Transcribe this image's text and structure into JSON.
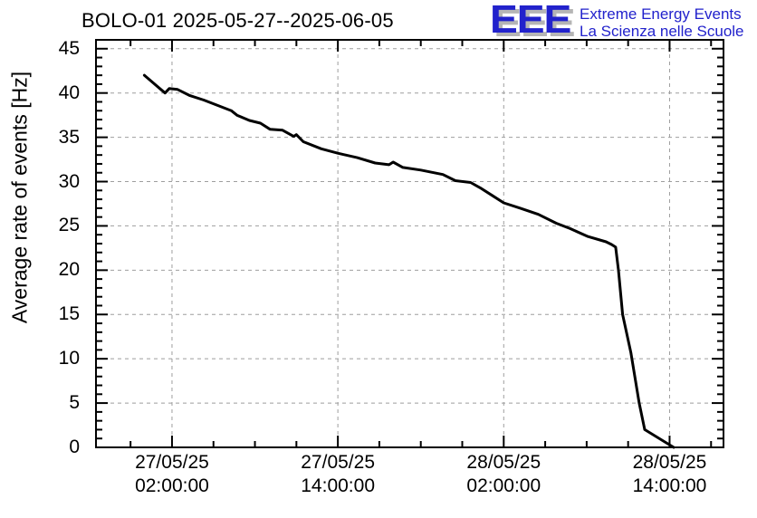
{
  "header": {
    "title": "BOLO-01 2025-05-27--2025-06-05"
  },
  "logo": {
    "acronym": "EEE",
    "line1": "Extreme Energy Events",
    "line2": "La Scienza nelle Scuole",
    "text_color": "#2222cc",
    "shadow_color": "#b5b5b5"
  },
  "chart_data": {
    "type": "line",
    "title": "BOLO-01 2025-05-27--2025-06-05",
    "xlabel": "",
    "ylabel": "Average rate of events [Hz]",
    "x_unit": "hours since 2025-05-27 00:00:00",
    "xlim": [
      -3.5,
      41.9
    ],
    "ylim": [
      0,
      46
    ],
    "grid": "dashed gray gridlines at major ticks, both axes",
    "legend_position": "none",
    "grid_color": "#9e9e9e",
    "frame_color": "#000000",
    "y_major_ticks": [
      0,
      5,
      10,
      15,
      20,
      25,
      30,
      35,
      40,
      45
    ],
    "y_minor_step": 1,
    "x_minor_step_hours": 3,
    "x_major_ticks": [
      {
        "hour": 2,
        "line1": "27/05/25",
        "line2": "02:00:00"
      },
      {
        "hour": 14,
        "line1": "27/05/25",
        "line2": "14:00:00"
      },
      {
        "hour": 26,
        "line1": "28/05/25",
        "line2": "02:00:00"
      },
      {
        "hour": 38,
        "line1": "28/05/25",
        "line2": "14:00:00"
      }
    ],
    "series": [
      {
        "name": "average-rate",
        "color": "#000000",
        "points": [
          [
            0.0,
            42.0
          ],
          [
            0.6,
            41.2
          ],
          [
            1.2,
            40.4
          ],
          [
            1.5,
            40.0
          ],
          [
            1.8,
            40.5
          ],
          [
            2.4,
            40.4
          ],
          [
            3.3,
            39.7
          ],
          [
            4.3,
            39.2
          ],
          [
            5.3,
            38.6
          ],
          [
            6.3,
            38.0
          ],
          [
            6.7,
            37.5
          ],
          [
            7.6,
            36.9
          ],
          [
            8.4,
            36.6
          ],
          [
            9.1,
            35.9
          ],
          [
            10.0,
            35.8
          ],
          [
            10.8,
            35.1
          ],
          [
            11.0,
            35.3
          ],
          [
            11.5,
            34.5
          ],
          [
            12.8,
            33.7
          ],
          [
            14.0,
            33.2
          ],
          [
            15.4,
            32.7
          ],
          [
            16.7,
            32.1
          ],
          [
            17.7,
            31.9
          ],
          [
            18.0,
            32.2
          ],
          [
            18.7,
            31.6
          ],
          [
            20.0,
            31.3
          ],
          [
            21.6,
            30.8
          ],
          [
            22.5,
            30.1
          ],
          [
            23.6,
            29.9
          ],
          [
            24.3,
            29.3
          ],
          [
            25.2,
            28.4
          ],
          [
            26.0,
            27.6
          ],
          [
            27.2,
            27.0
          ],
          [
            28.5,
            26.3
          ],
          [
            29.8,
            25.3
          ],
          [
            30.8,
            24.7
          ],
          [
            32.1,
            23.8
          ],
          [
            33.4,
            23.2
          ],
          [
            33.8,
            22.9
          ],
          [
            34.1,
            22.6
          ],
          [
            34.3,
            20.0
          ],
          [
            34.6,
            15.0
          ],
          [
            35.2,
            10.7
          ],
          [
            35.8,
            5.0
          ],
          [
            36.2,
            2.0
          ],
          [
            38.3,
            0.0
          ]
        ]
      }
    ]
  }
}
